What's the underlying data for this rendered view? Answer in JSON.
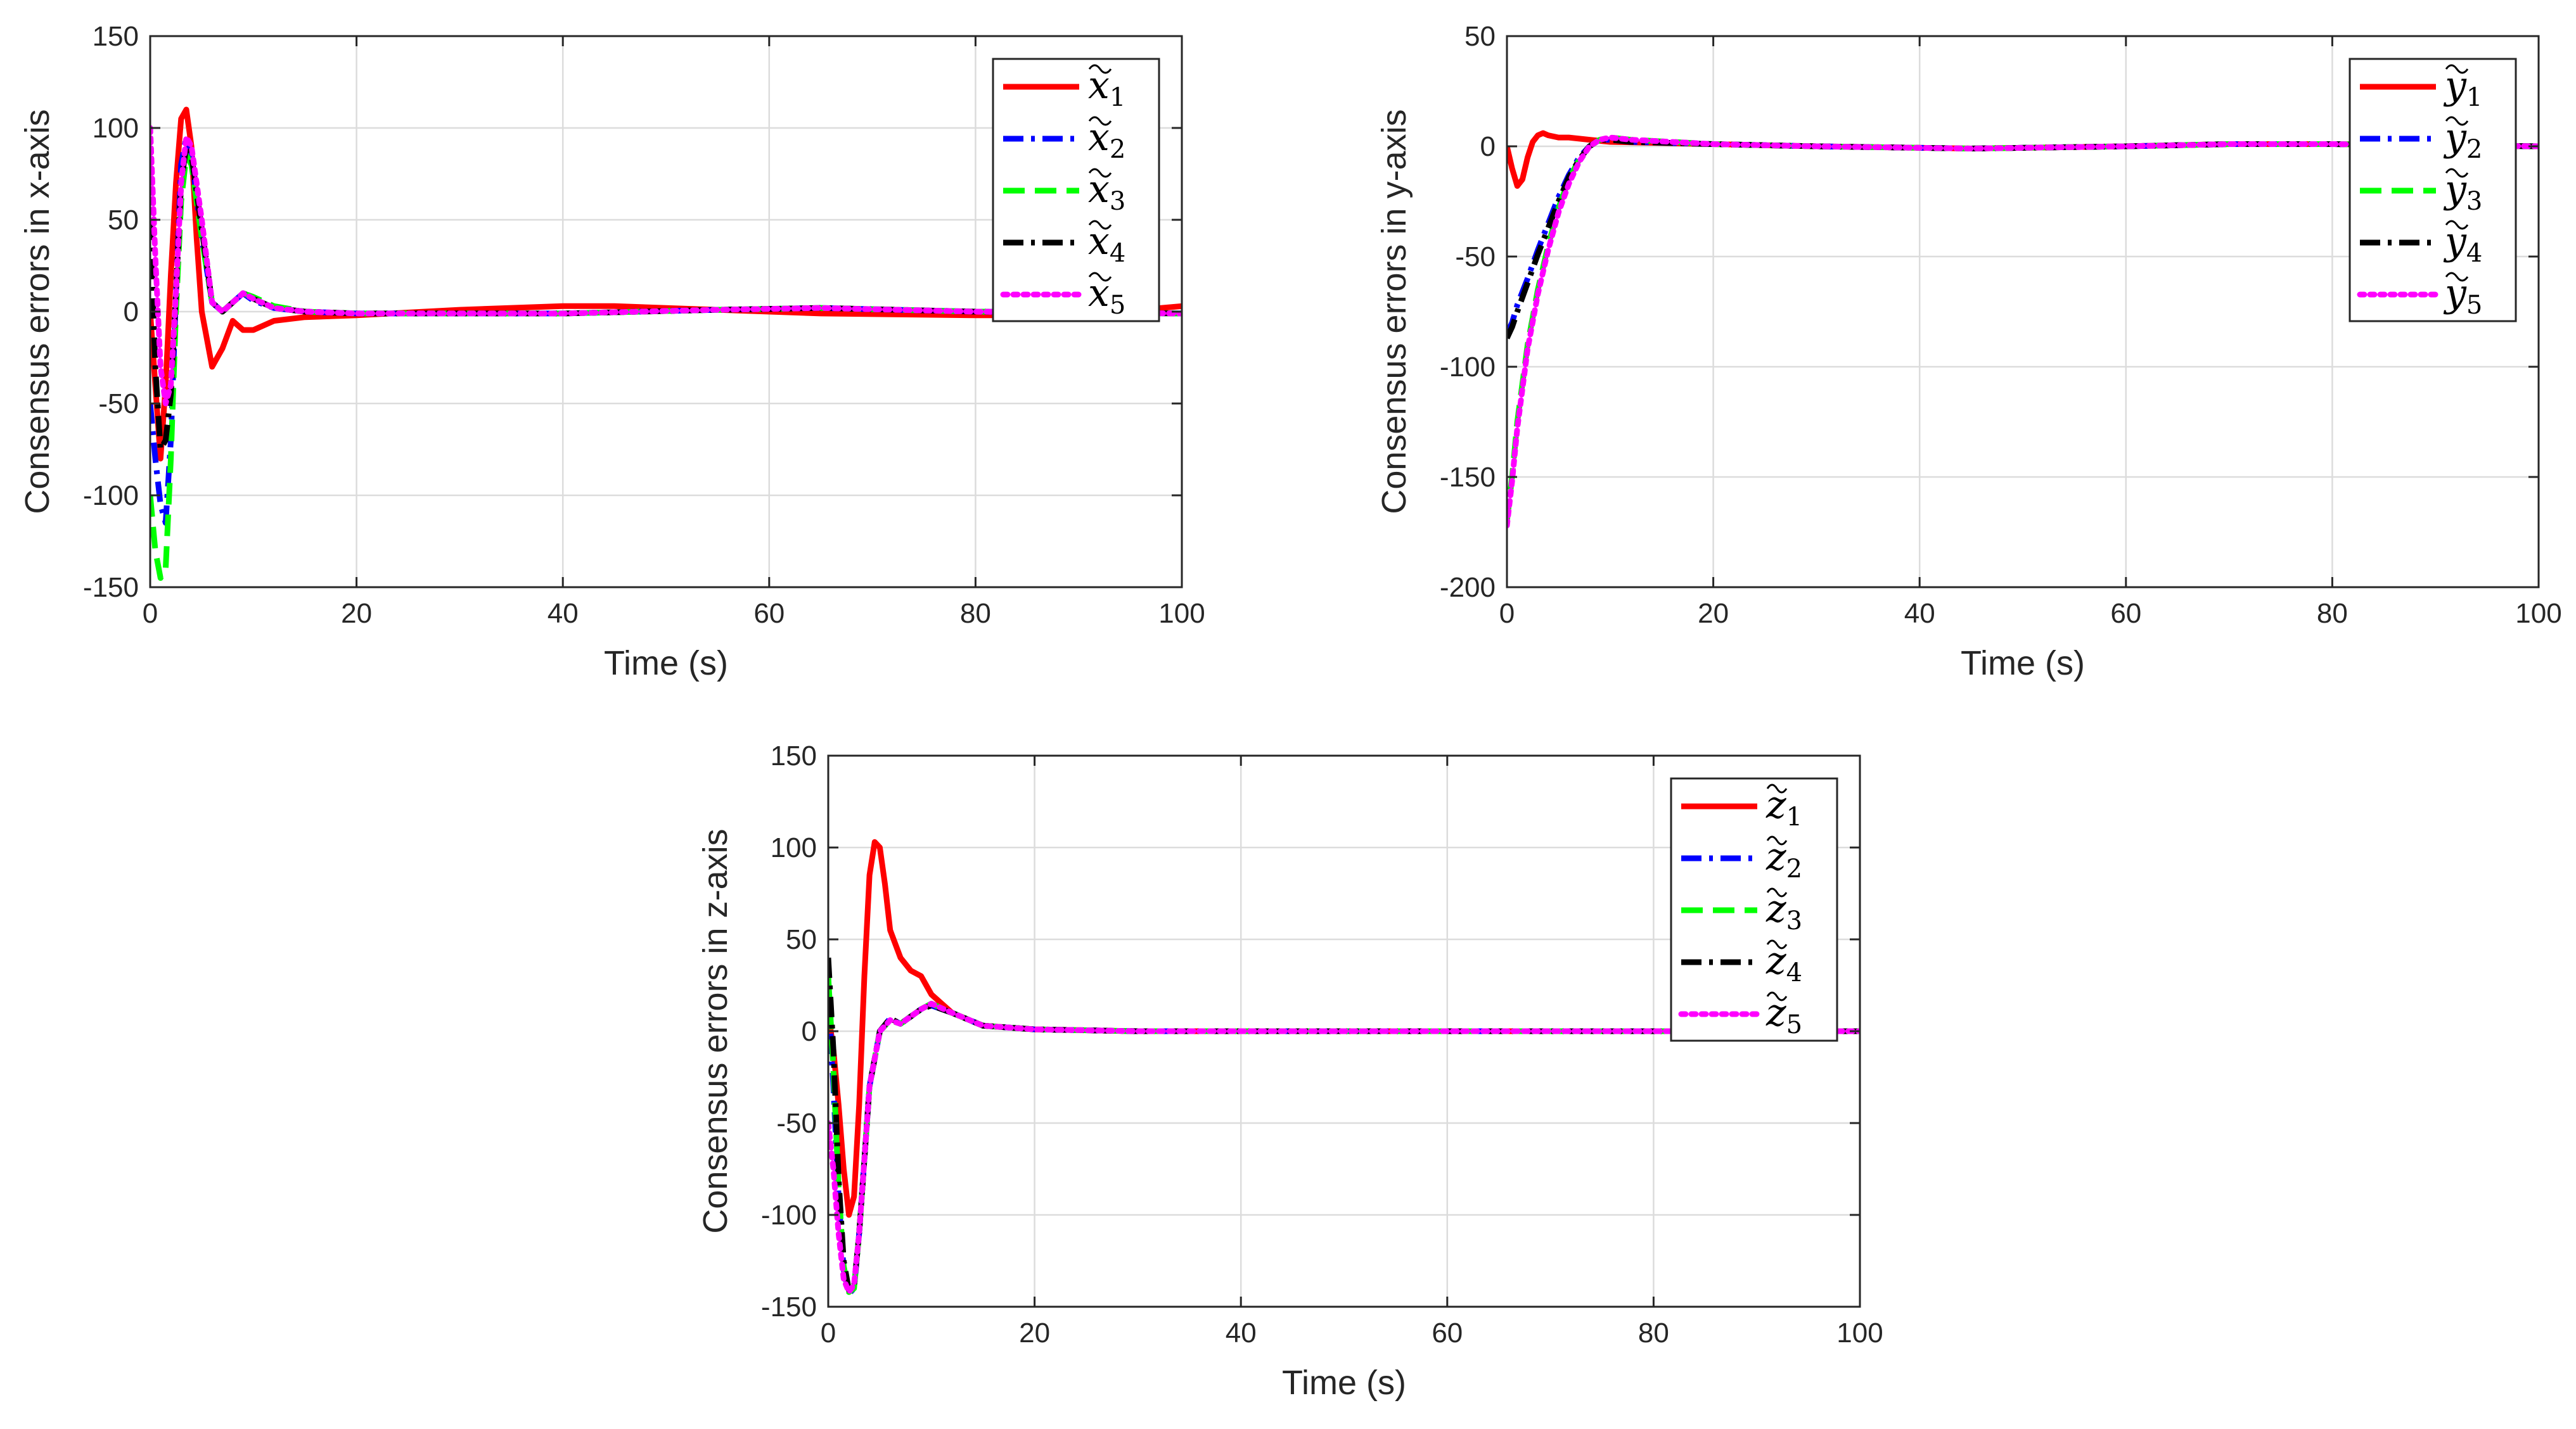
{
  "chart_data": [
    {
      "id": "x",
      "type": "line",
      "title": "",
      "xlabel": "Time (s)",
      "ylabel": "Consensus errors in x-axis",
      "xlim": [
        0,
        100
      ],
      "ylim": [
        -150,
        150
      ],
      "xticks": [
        0,
        20,
        40,
        60,
        80,
        100
      ],
      "yticks": [
        -150,
        -100,
        -50,
        0,
        50,
        100,
        150
      ],
      "grid": true,
      "legend_position": "top-right",
      "series": [
        {
          "name": "x̃1",
          "base": "x",
          "sub": "1",
          "color": "#ff0000",
          "dash": "solid",
          "x": [
            0,
            0.5,
            1,
            1.5,
            2,
            2.5,
            3,
            3.5,
            4,
            4.5,
            5,
            6,
            7,
            8,
            9,
            10,
            12,
            15,
            20,
            30,
            40,
            45,
            55,
            65,
            80,
            90,
            100
          ],
          "y": [
            0,
            -40,
            -80,
            -40,
            20,
            70,
            105,
            110,
            90,
            40,
            0,
            -30,
            -20,
            -5,
            -10,
            -10,
            -5,
            -3,
            -2,
            1,
            3,
            3,
            1,
            -1,
            -2,
            -2,
            3
          ]
        },
        {
          "name": "x̃2",
          "base": "x",
          "sub": "2",
          "color": "#0000ff",
          "dash": "dashdot",
          "x": [
            0,
            0.5,
            1,
            1.5,
            2,
            2.5,
            3,
            3.5,
            4,
            5,
            6,
            7,
            8,
            9,
            10,
            12,
            15,
            20,
            40,
            55,
            65,
            80,
            100
          ],
          "y": [
            -50,
            -80,
            -105,
            -115,
            -70,
            10,
            80,
            95,
            85,
            40,
            5,
            0,
            5,
            10,
            6,
            2,
            0,
            -1,
            -1,
            1,
            2,
            0,
            -1
          ]
        },
        {
          "name": "x̃3",
          "base": "x",
          "sub": "3",
          "color": "#00ff00",
          "dash": "dashed",
          "x": [
            0,
            0.5,
            1,
            1.5,
            2,
            2.5,
            3,
            3.5,
            4,
            5,
            6,
            7,
            8,
            9,
            10,
            12,
            15,
            20,
            40,
            55,
            65,
            80,
            100
          ],
          "y": [
            -100,
            -130,
            -145,
            -140,
            -80,
            0,
            60,
            85,
            80,
            40,
            5,
            0,
            5,
            10,
            8,
            3,
            0,
            -1,
            -1,
            1,
            2,
            0,
            -1
          ]
        },
        {
          "name": "x̃4",
          "base": "x",
          "sub": "4",
          "color": "#000000",
          "dash": "dashdot",
          "x": [
            0,
            0.5,
            1,
            1.5,
            2,
            2.5,
            3,
            3.5,
            4,
            5,
            6,
            7,
            8,
            9,
            10,
            12,
            15,
            20,
            40,
            55,
            65,
            80,
            100
          ],
          "y": [
            50,
            -30,
            -75,
            -70,
            -45,
            10,
            70,
            90,
            85,
            45,
            5,
            0,
            5,
            10,
            7,
            2,
            0,
            -1,
            -1,
            1,
            2,
            0,
            -1
          ]
        },
        {
          "name": "x̃5",
          "base": "x",
          "sub": "5",
          "color": "#ff00ff",
          "dash": "dotted",
          "x": [
            0,
            0.5,
            1,
            1.5,
            2,
            2.5,
            3,
            3.5,
            4,
            5,
            6,
            7,
            8,
            9,
            10,
            12,
            15,
            20,
            40,
            55,
            65,
            80,
            100
          ],
          "y": [
            100,
            30,
            -30,
            -50,
            -40,
            10,
            70,
            95,
            90,
            50,
            5,
            0,
            5,
            10,
            7,
            2,
            0,
            -1,
            -1,
            1,
            2,
            0,
            -1
          ]
        }
      ]
    },
    {
      "id": "y",
      "type": "line",
      "title": "",
      "xlabel": "Time (s)",
      "ylabel": "Consensus errors in y-axis",
      "xlim": [
        0,
        100
      ],
      "ylim": [
        -200,
        50
      ],
      "xticks": [
        0,
        20,
        40,
        60,
        80,
        100
      ],
      "yticks": [
        -200,
        -150,
        -100,
        -50,
        0,
        50
      ],
      "grid": true,
      "legend_position": "top-right",
      "series": [
        {
          "name": "ỹ1",
          "base": "y",
          "sub": "1",
          "color": "#ff0000",
          "dash": "solid",
          "x": [
            0,
            0.5,
            1,
            1.5,
            2,
            2.5,
            3,
            3.5,
            4,
            5,
            6,
            8,
            10,
            20,
            30,
            45,
            60,
            70,
            80,
            100
          ],
          "y": [
            0,
            -10,
            -18,
            -15,
            -5,
            2,
            5,
            6,
            5,
            4,
            4,
            3,
            2,
            1,
            0,
            -1,
            0,
            1,
            1,
            0
          ]
        },
        {
          "name": "ỹ2",
          "base": "y",
          "sub": "2",
          "color": "#0000ff",
          "dash": "dashdot",
          "x": [
            0,
            0.5,
            1,
            2,
            3,
            4,
            5,
            6,
            7,
            8,
            9,
            10,
            12,
            20,
            30,
            45,
            60,
            70,
            80,
            100
          ],
          "y": [
            -85,
            -80,
            -72,
            -60,
            -47,
            -35,
            -23,
            -13,
            -5,
            0,
            3,
            3,
            2,
            1,
            0,
            -1,
            0,
            1,
            1,
            0
          ]
        },
        {
          "name": "ỹ3",
          "base": "y",
          "sub": "3",
          "color": "#00ff00",
          "dash": "dashed",
          "x": [
            0,
            0.5,
            1,
            2,
            3,
            4,
            5,
            6,
            7,
            8,
            9,
            10,
            12,
            20,
            30,
            45,
            60,
            70,
            80,
            100
          ],
          "y": [
            -170,
            -150,
            -125,
            -90,
            -65,
            -45,
            -28,
            -15,
            -6,
            0,
            3,
            4,
            3,
            1,
            0,
            -1,
            0,
            1,
            1,
            0
          ]
        },
        {
          "name": "ỹ4",
          "base": "y",
          "sub": "4",
          "color": "#000000",
          "dash": "dashdot",
          "x": [
            0,
            0.5,
            1,
            2,
            3,
            4,
            5,
            6,
            7,
            8,
            9,
            10,
            12,
            20,
            30,
            45,
            60,
            70,
            80,
            100
          ],
          "y": [
            -87,
            -82,
            -75,
            -62,
            -49,
            -37,
            -25,
            -14,
            -6,
            0,
            3,
            3,
            2,
            1,
            0,
            -1,
            0,
            1,
            1,
            0
          ]
        },
        {
          "name": "ỹ5",
          "base": "y",
          "sub": "5",
          "color": "#ff00ff",
          "dash": "dotted",
          "x": [
            0,
            0.5,
            1,
            2,
            3,
            4,
            5,
            6,
            7,
            8,
            9,
            10,
            12,
            20,
            30,
            45,
            60,
            70,
            80,
            100
          ],
          "y": [
            -172,
            -152,
            -128,
            -92,
            -67,
            -47,
            -30,
            -17,
            -7,
            0,
            3,
            4,
            3,
            1,
            0,
            -1,
            0,
            1,
            1,
            0
          ]
        }
      ]
    },
    {
      "id": "z",
      "type": "line",
      "title": "",
      "xlabel": "Time (s)",
      "ylabel": "Consensus errors in z-axis",
      "xlim": [
        0,
        100
      ],
      "ylim": [
        -150,
        150
      ],
      "xticks": [
        0,
        20,
        40,
        60,
        80,
        100
      ],
      "yticks": [
        -150,
        -100,
        -50,
        0,
        50,
        100,
        150
      ],
      "grid": true,
      "legend_position": "top-right",
      "series": [
        {
          "name": "z̃1",
          "base": "z",
          "sub": "1",
          "color": "#ff0000",
          "dash": "solid",
          "x": [
            0,
            0.5,
            1,
            1.5,
            2,
            2.5,
            3,
            3.5,
            4,
            4.5,
            5,
            5.5,
            6,
            7,
            8,
            9,
            10,
            12,
            15,
            20,
            30,
            50,
            100
          ],
          "y": [
            10,
            -10,
            -40,
            -75,
            -100,
            -90,
            -40,
            30,
            85,
            103,
            100,
            80,
            55,
            40,
            33,
            30,
            20,
            10,
            3,
            1,
            0,
            0,
            0
          ]
        },
        {
          "name": "z̃2",
          "base": "z",
          "sub": "2",
          "color": "#0000ff",
          "dash": "dashdot",
          "x": [
            0,
            0.5,
            1,
            1.5,
            2,
            2.5,
            3,
            3.5,
            4,
            5,
            6,
            7,
            8,
            9,
            10,
            12,
            15,
            20,
            30,
            50,
            100
          ],
          "y": [
            20,
            -30,
            -90,
            -130,
            -143,
            -140,
            -110,
            -70,
            -30,
            0,
            7,
            4,
            8,
            12,
            14,
            10,
            3,
            1,
            0,
            0,
            0
          ]
        },
        {
          "name": "z̃3",
          "base": "z",
          "sub": "3",
          "color": "#00ff00",
          "dash": "dashed",
          "x": [
            0,
            0.5,
            1,
            1.5,
            2,
            2.5,
            3,
            3.5,
            4,
            5,
            6,
            7,
            8,
            9,
            10,
            12,
            15,
            20,
            30,
            50,
            100
          ],
          "y": [
            30,
            -20,
            -85,
            -128,
            -142,
            -140,
            -110,
            -70,
            -30,
            0,
            6,
            4,
            8,
            12,
            15,
            10,
            3,
            1,
            0,
            0,
            0
          ]
        },
        {
          "name": "z̃4",
          "base": "z",
          "sub": "4",
          "color": "#000000",
          "dash": "dashdot",
          "x": [
            0,
            0.5,
            1,
            1.5,
            2,
            2.5,
            3,
            3.5,
            4,
            5,
            6,
            7,
            8,
            9,
            10,
            12,
            15,
            20,
            30,
            50,
            100
          ],
          "y": [
            40,
            -10,
            -80,
            -125,
            -141,
            -139,
            -110,
            -70,
            -30,
            0,
            7,
            4,
            8,
            12,
            14,
            10,
            3,
            1,
            0,
            0,
            0
          ]
        },
        {
          "name": "z̃5",
          "base": "z",
          "sub": "5",
          "color": "#ff00ff",
          "dash": "dotted",
          "x": [
            0,
            0.5,
            1,
            1.5,
            2,
            2.5,
            3,
            3.5,
            4,
            5,
            6,
            7,
            8,
            9,
            10,
            12,
            15,
            20,
            30,
            50,
            100
          ],
          "y": [
            -50,
            -75,
            -110,
            -135,
            -142,
            -138,
            -110,
            -70,
            -30,
            0,
            6,
            4,
            8,
            12,
            15,
            10,
            3,
            1,
            0,
            0,
            0
          ]
        }
      ]
    }
  ]
}
